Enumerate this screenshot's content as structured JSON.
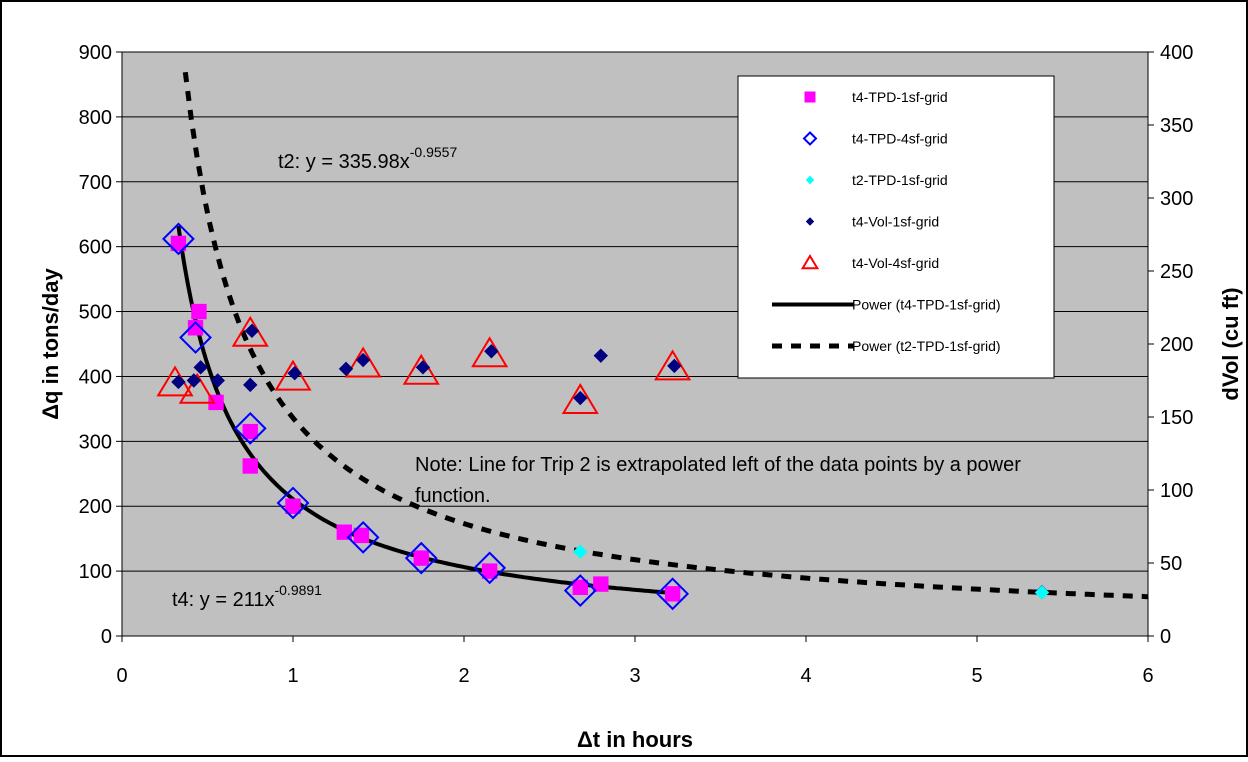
{
  "chart_data": {
    "type": "scatter",
    "x_axis": {
      "label": "Δt in hours",
      "range": [
        0,
        6
      ],
      "ticks": [
        0,
        1,
        2,
        3,
        4,
        5,
        6
      ]
    },
    "y_axis_left": {
      "label": "Δq in tons/day",
      "range": [
        0,
        900
      ],
      "ticks": [
        0,
        100,
        200,
        300,
        400,
        500,
        600,
        700,
        800,
        900
      ]
    },
    "y_axis_right": {
      "label": "dVol (cu ft)",
      "range": [
        0,
        400
      ],
      "ticks": [
        0,
        50,
        100,
        150,
        200,
        250,
        300,
        350,
        400
      ]
    },
    "grid": "horizontal",
    "plot_background": "#c0c0c0",
    "legend_placement": "top-right",
    "series": [
      {
        "name": "t4-TPD-1sf-grid",
        "axis": "left",
        "marker": "square",
        "color": "#ff00ff",
        "points": [
          [
            0.33,
            605
          ],
          [
            0.45,
            500
          ],
          [
            0.43,
            475
          ],
          [
            0.55,
            360
          ],
          [
            0.75,
            262
          ],
          [
            0.75,
            315
          ],
          [
            1.0,
            200
          ],
          [
            1.3,
            160
          ],
          [
            1.4,
            155
          ],
          [
            1.75,
            120
          ],
          [
            2.15,
            100
          ],
          [
            2.68,
            75
          ],
          [
            2.8,
            80
          ],
          [
            3.22,
            65
          ]
        ]
      },
      {
        "name": "t4-TPD-4sf-grid",
        "axis": "left",
        "marker": "diamond-open",
        "color": "#0000ff",
        "points": [
          [
            0.33,
            612
          ],
          [
            0.43,
            460
          ],
          [
            0.75,
            320
          ],
          [
            1.0,
            205
          ],
          [
            1.41,
            152
          ],
          [
            1.75,
            120
          ],
          [
            2.15,
            105
          ],
          [
            2.68,
            70
          ],
          [
            3.22,
            65
          ]
        ]
      },
      {
        "name": "t2-TPD-1sf-grid",
        "axis": "left",
        "marker": "diamond",
        "color": "#00ffff",
        "points": [
          [
            2.68,
            130
          ],
          [
            5.38,
            67
          ]
        ]
      },
      {
        "name": "t4-Vol-1sf-grid",
        "axis": "right",
        "marker": "diamond",
        "color": "#000080",
        "points": [
          [
            0.33,
            174
          ],
          [
            0.42,
            175
          ],
          [
            0.46,
            184
          ],
          [
            0.56,
            175
          ],
          [
            0.75,
            172
          ],
          [
            0.76,
            209
          ],
          [
            1.01,
            180
          ],
          [
            1.31,
            183
          ],
          [
            1.41,
            189
          ],
          [
            1.76,
            184
          ],
          [
            2.16,
            195
          ],
          [
            2.68,
            163
          ],
          [
            2.8,
            192
          ],
          [
            3.23,
            185
          ],
          [
            5.38,
            30
          ]
        ]
      },
      {
        "name": "t4-Vol-4sf-grid",
        "axis": "right",
        "marker": "triangle-open",
        "color": "#ff0000",
        "points": [
          [
            0.31,
            173
          ],
          [
            0.44,
            168
          ],
          [
            0.75,
            207
          ],
          [
            1.0,
            177
          ],
          [
            1.41,
            186
          ],
          [
            1.75,
            181
          ],
          [
            2.15,
            193
          ],
          [
            2.68,
            161
          ],
          [
            3.22,
            184
          ]
        ]
      }
    ],
    "trendlines": [
      {
        "name": "Power (t4-TPD-1sf-grid)",
        "style": "solid",
        "a": 211,
        "b": -0.9891,
        "x_range": [
          0.33,
          3.22
        ]
      },
      {
        "name": "Power (t2-TPD-1sf-grid)",
        "style": "dashed",
        "a": 335.98,
        "b": -0.9557,
        "x_range": [
          0.37,
          6
        ]
      }
    ],
    "annotations": {
      "t2_equation": {
        "prefix": "t2: y = 335.98x",
        "exponent": "-0.9557"
      },
      "t4_equation": {
        "prefix": "t4: y = 211x",
        "exponent": "-0.9891"
      },
      "note_line1": "Note:  Line for Trip 2 is extrapolated left of the data points by a power",
      "note_line2": "function."
    }
  }
}
